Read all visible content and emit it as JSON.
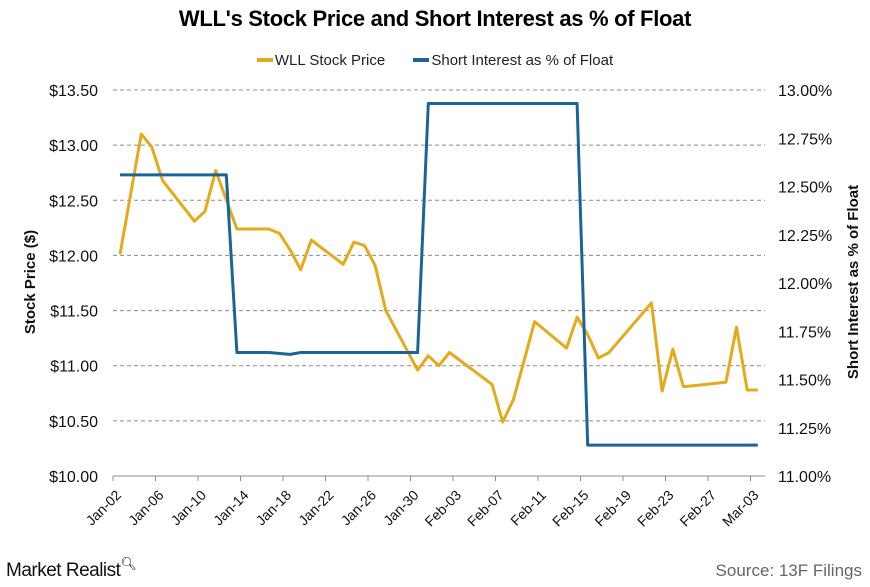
{
  "chart_data": {
    "type": "line",
    "title": "WLL's Stock Price and Short Interest as %  of Float",
    "xlabel": "",
    "ylabel_left": "Stock Price ($)",
    "ylabel_right": "Short Interest as % of Float",
    "ylim_left": [
      10.0,
      13.5
    ],
    "ylim_right": [
      11.0,
      13.0
    ],
    "yticks_left": [
      "$10.00",
      "$10.50",
      "$11.00",
      "$11.50",
      "$12.00",
      "$12.50",
      "$13.00",
      "$13.50"
    ],
    "yticks_right": [
      "11.00%",
      "11.25%",
      "11.50%",
      "11.75%",
      "12.00%",
      "12.25%",
      "12.50%",
      "12.75%",
      "13.00%"
    ],
    "xticks": [
      "Jan-02",
      "Jan-06",
      "Jan-10",
      "Jan-14",
      "Jan-18",
      "Jan-22",
      "Jan-26",
      "Jan-30",
      "Feb-03",
      "Feb-07",
      "Feb-11",
      "Feb-15",
      "Feb-19",
      "Feb-23",
      "Feb-27",
      "Mar-03"
    ],
    "grid": "horizontal-dashed",
    "legend_position": "top-center",
    "series": [
      {
        "name": "WLL Stock Price",
        "axis": "left",
        "color": "#E5A91C",
        "points": [
          [
            "Jan-02",
            12.01
          ],
          [
            "Jan-04",
            13.1
          ],
          [
            "Jan-05",
            12.98
          ],
          [
            "Jan-06",
            12.68
          ],
          [
            "Jan-09",
            12.31
          ],
          [
            "Jan-10",
            12.4
          ],
          [
            "Jan-11",
            12.77
          ],
          [
            "Jan-13",
            12.24
          ],
          [
            "Jan-16",
            12.24
          ],
          [
            "Jan-17",
            12.2
          ],
          [
            "Jan-18",
            12.05
          ],
          [
            "Jan-19",
            11.87
          ],
          [
            "Jan-20",
            12.14
          ],
          [
            "Jan-23",
            11.92
          ],
          [
            "Jan-24",
            12.12
          ],
          [
            "Jan-25",
            12.09
          ],
          [
            "Jan-26",
            11.91
          ],
          [
            "Jan-27",
            11.5
          ],
          [
            "Jan-30",
            10.96
          ],
          [
            "Jan-31",
            11.09
          ],
          [
            "Feb-01",
            11.0
          ],
          [
            "Feb-02",
            11.12
          ],
          [
            "Feb-06",
            10.83
          ],
          [
            "Feb-07",
            10.49
          ],
          [
            "Feb-08",
            10.69
          ],
          [
            "Feb-09",
            11.04
          ],
          [
            "Feb-10",
            11.4
          ],
          [
            "Feb-13",
            11.16
          ],
          [
            "Feb-14",
            11.44
          ],
          [
            "Feb-15",
            11.28
          ],
          [
            "Feb-16",
            11.07
          ],
          [
            "Feb-17",
            11.12
          ],
          [
            "Feb-21",
            11.57
          ],
          [
            "Feb-22",
            10.77
          ],
          [
            "Feb-23",
            11.15
          ],
          [
            "Feb-24",
            10.81
          ],
          [
            "Feb-28",
            10.85
          ],
          [
            "Mar-01",
            11.35
          ],
          [
            "Mar-02",
            10.78
          ],
          [
            "Mar-03",
            10.78
          ]
        ]
      },
      {
        "name": "Short Interest as % of Float",
        "axis": "right",
        "color": "#1A6496",
        "points": [
          [
            "Jan-02",
            12.56
          ],
          [
            "Jan-12",
            12.56
          ],
          [
            "Jan-13",
            11.64
          ],
          [
            "Jan-16",
            11.64
          ],
          [
            "Jan-18",
            11.63
          ],
          [
            "Jan-19",
            11.64
          ],
          [
            "Jan-30",
            11.64
          ],
          [
            "Jan-31",
            12.93
          ],
          [
            "Feb-14",
            12.93
          ],
          [
            "Feb-15",
            11.16
          ],
          [
            "Mar-03",
            11.16
          ]
        ]
      }
    ]
  },
  "legend": {
    "items": [
      {
        "label": "WLL Stock Price",
        "color": "#E5A91C"
      },
      {
        "label": "Short Interest as % of Float",
        "color": "#1A6496"
      }
    ]
  },
  "footer": {
    "brand": "Market Realist",
    "source": "Source:  13F Filings"
  }
}
